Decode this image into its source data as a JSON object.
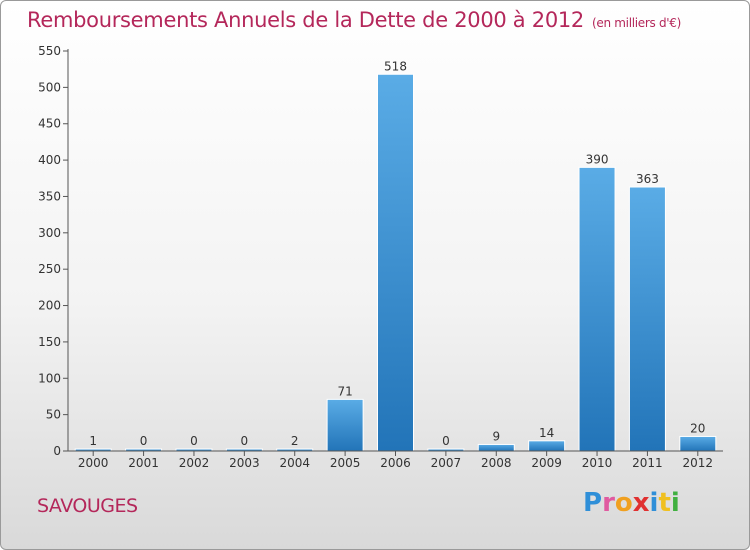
{
  "header": {
    "title": "Remboursements Annuels de la Dette de 2000 à 2012",
    "unit": "(en milliers d'€)"
  },
  "footer": {
    "city": "SAVOUGES",
    "logo_text": "Proxiti"
  },
  "logo_colors": [
    "#2f8fd8",
    "#e05aa0",
    "#f0a020",
    "#e03030",
    "#2f8fd8",
    "#f0c020",
    "#40b040"
  ],
  "chart_data": {
    "type": "bar",
    "title": "Remboursements Annuels de la Dette de 2000 à 2012",
    "unit": "(en milliers d'€)",
    "categories": [
      "2000",
      "2001",
      "2002",
      "2003",
      "2004",
      "2005",
      "2006",
      "2007",
      "2008",
      "2009",
      "2010",
      "2011",
      "2012"
    ],
    "values": [
      1,
      0,
      0,
      0,
      2,
      71,
      518,
      0,
      9,
      14,
      390,
      363,
      20
    ],
    "ylim": [
      0,
      550
    ],
    "yticks": [
      0,
      50,
      100,
      150,
      200,
      250,
      300,
      350,
      400,
      450,
      500,
      550
    ],
    "grid": false,
    "legend": "none",
    "bar_color_light": "#5aace6",
    "bar_color_dark": "#2274b8",
    "axis_color": "#555555"
  }
}
